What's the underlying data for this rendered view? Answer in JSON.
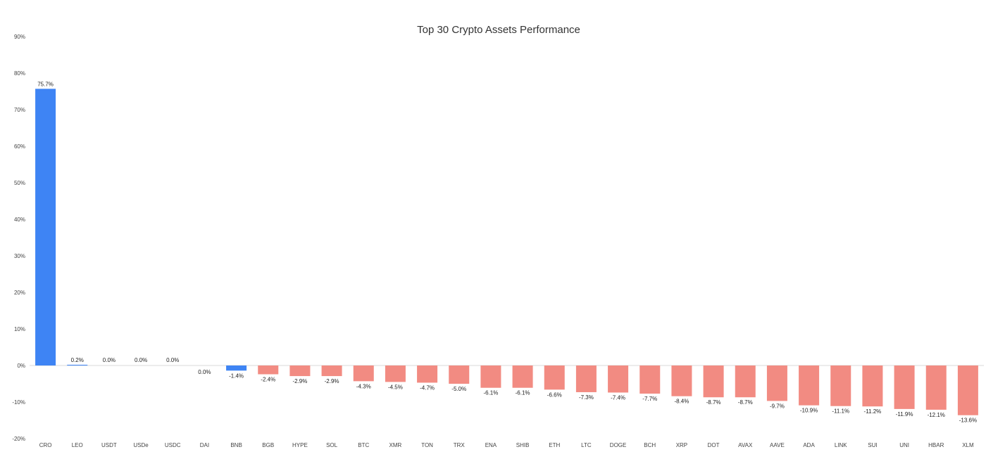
{
  "chart_data": {
    "type": "bar",
    "title": "Top 30 Crypto Assets Performance",
    "xlabel": "",
    "ylabel": "",
    "ylim": [
      -20,
      90
    ],
    "y_ticks": [
      -20,
      -10,
      0,
      10,
      20,
      30,
      40,
      50,
      60,
      70,
      80,
      90
    ],
    "y_tick_labels": [
      "-20%",
      "-10%",
      "0%",
      "10%",
      "20%",
      "30%",
      "40%",
      "50%",
      "60%",
      "70%",
      "80%",
      "90%"
    ],
    "grid": false,
    "legend": "none",
    "categories": [
      "CRO",
      "LEO",
      "USDT",
      "USDe",
      "USDC",
      "DAI",
      "BNB",
      "BGB",
      "HYPE",
      "SOL",
      "BTC",
      "XMR",
      "TON",
      "TRX",
      "ENA",
      "SHIB",
      "ETH",
      "LTC",
      "DOGE",
      "BCH",
      "XRP",
      "DOT",
      "AVAX",
      "AAVE",
      "ADA",
      "LINK",
      "SUI",
      "UNI",
      "HBAR",
      "XLM"
    ],
    "values": [
      75.7,
      0.2,
      0.0,
      0.0,
      0.0,
      0.0,
      -1.4,
      -2.4,
      -2.9,
      -2.9,
      -4.3,
      -4.5,
      -4.7,
      -5.0,
      -6.1,
      -6.1,
      -6.6,
      -7.3,
      -7.4,
      -7.7,
      -8.4,
      -8.7,
      -8.7,
      -9.7,
      -10.9,
      -11.1,
      -11.2,
      -11.9,
      -12.1,
      -13.6
    ],
    "data_labels": [
      "75.7%",
      "0.2%",
      "0.0%",
      "0.0%",
      "0.0%",
      "0.0%",
      "-1.4%",
      "-2.4%",
      "-2.9%",
      "-2.9%",
      "-4.3%",
      "-4.5%",
      "-4.7%",
      "-5.0%",
      "-6.1%",
      "-6.1%",
      "-6.6%",
      "-7.3%",
      "-7.4%",
      "-7.7%",
      "-8.4%",
      "-8.7%",
      "-8.7%",
      "-9.7%",
      "-10.9%",
      "-11.1%",
      "-11.2%",
      "-11.9%",
      "-12.1%",
      "-13.6%"
    ],
    "bar_colors": [
      "#3e84f4",
      "#3e84f4",
      "#3e84f4",
      "#3e84f4",
      "#3e84f4",
      "#3e84f4",
      "#3e84f4",
      "#f28b82",
      "#f28b82",
      "#f28b82",
      "#f28b82",
      "#f28b82",
      "#f28b82",
      "#f28b82",
      "#f28b82",
      "#f28b82",
      "#f28b82",
      "#f28b82",
      "#f28b82",
      "#f28b82",
      "#f28b82",
      "#f28b82",
      "#f28b82",
      "#f28b82",
      "#f28b82",
      "#f28b82",
      "#f28b82",
      "#f28b82",
      "#f28b82",
      "#f28b82"
    ],
    "colors": {
      "positive": "#3e84f4",
      "negative": "#f28b82",
      "zero_line": "#d9d9d9"
    }
  }
}
